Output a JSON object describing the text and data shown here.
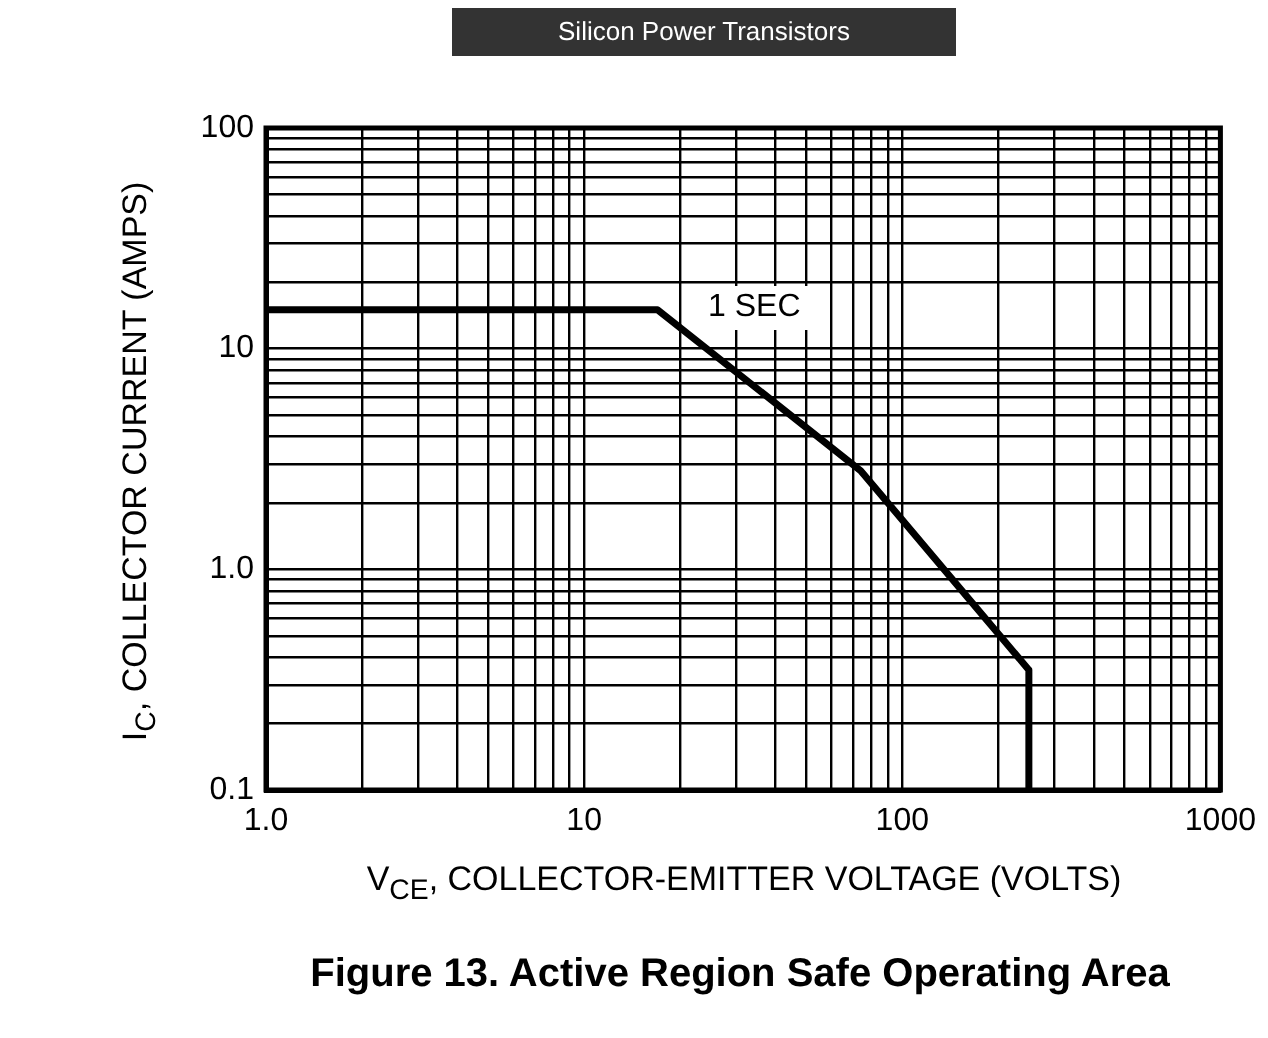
{
  "chart_data": {
    "type": "line",
    "title": "Figure 13. Active Region Safe Operating Area",
    "xlabel": "V$_{CE}$, COLLECTOR-EMITTER VOLTAGE (VOLTS)",
    "ylabel": "I$_{C}$, COLLECTOR CURRENT (AMPS)",
    "annotations": [
      "Silicon Power Transistors",
      "1 SEC"
    ],
    "log": "xy",
    "grid": true,
    "legend": false,
    "marker": "none",
    "line_style": "solid",
    "xlim": [
      1,
      1000
    ],
    "ylim": [
      0.1,
      100
    ],
    "xticks": [
      {
        "value": 1,
        "label": "1.0"
      },
      {
        "value": 2,
        "label": null
      },
      {
        "value": 3,
        "label": null
      },
      {
        "value": 4,
        "label": null
      },
      {
        "value": 5,
        "label": null
      },
      {
        "value": 6,
        "label": null
      },
      {
        "value": 7,
        "label": null
      },
      {
        "value": 8,
        "label": null
      },
      {
        "value": 9,
        "label": null
      },
      10,
      {
        "value": 20,
        "label": null
      },
      {
        "value": 30,
        "label": null
      },
      {
        "value": 40,
        "label": null
      },
      {
        "value": 50,
        "label": null
      },
      {
        "value": 60,
        "label": null
      },
      {
        "value": 70,
        "label": null
      },
      {
        "value": 80,
        "label": null
      },
      {
        "value": 90,
        "label": null
      },
      100,
      {
        "value": 200,
        "label": null
      },
      {
        "value": 300,
        "label": null
      },
      {
        "value": 400,
        "label": null
      },
      {
        "value": 500,
        "label": null
      },
      {
        "value": 600,
        "label": null
      },
      {
        "value": 700,
        "label": null
      },
      {
        "value": 800,
        "label": null
      },
      {
        "value": 900,
        "label": null
      },
      1000
    ],
    "yticks": [
      0.1,
      {
        "value": 0.2,
        "label": null
      },
      {
        "value": 0.3,
        "label": null
      },
      {
        "value": 0.4,
        "label": null
      },
      {
        "value": 0.5,
        "label": null
      },
      {
        "value": 0.6,
        "label": null
      },
      {
        "value": 0.7,
        "label": null
      },
      {
        "value": 0.8,
        "label": null
      },
      {
        "value": 0.9,
        "label": null
      },
      {
        "value": 1,
        "label": "1.0"
      },
      {
        "value": 2,
        "label": null
      },
      {
        "value": 3,
        "label": null
      },
      {
        "value": 4,
        "label": null
      },
      {
        "value": 5,
        "label": null
      },
      {
        "value": 6,
        "label": null
      },
      {
        "value": 7,
        "label": null
      },
      {
        "value": 8,
        "label": null
      },
      {
        "value": 9,
        "label": null
      },
      10,
      {
        "value": 20,
        "label": null
      },
      {
        "value": 30,
        "label": null
      },
      {
        "value": 40,
        "label": null
      },
      {
        "value": 50,
        "label": null
      },
      {
        "value": 60,
        "label": null
      },
      {
        "value": 70,
        "label": null
      },
      {
        "value": 80,
        "label": null
      },
      {
        "value": 90,
        "label": null
      },
      100
    ],
    "series": [
      {
        "color": "#000000",
        "x": [
          1,
          17,
          74,
          250,
          250
        ],
        "values": [
          15,
          15,
          2.8,
          0.35,
          0.1
        ]
      }
    ]
  }
}
